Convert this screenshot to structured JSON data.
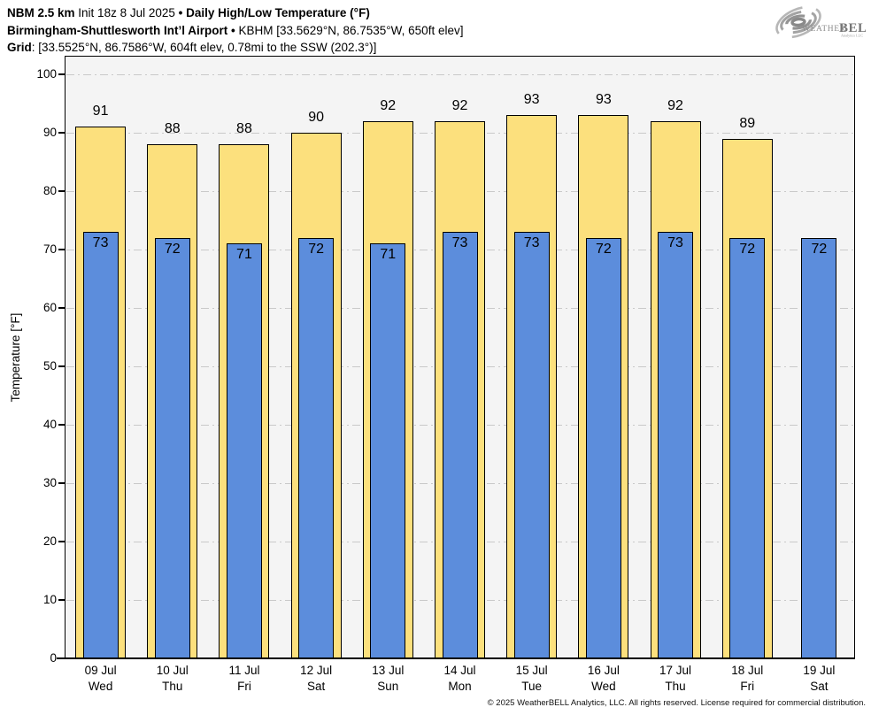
{
  "header": {
    "line1": {
      "model": "NBM 2.5 km",
      "init": "Init 18z 8 Jul 2025",
      "bullet": "•",
      "title": "Daily High/Low Temperature (°F)"
    },
    "line2": {
      "station": "Birmingham-Shuttlesworth Int’l Airport",
      "bullet": "•",
      "meta": "KBHM [33.5629°N, 86.7535°W, 650ft elev]"
    },
    "line3": {
      "label": "Grid",
      "meta": ": [33.5525°N, 86.7586°W, 604ft elev, 0.78mi to the SSW (202.3°)]"
    }
  },
  "logo": {
    "weather": "Weather",
    "bell": "BELL",
    "sub": "Analytics LLC"
  },
  "chart_data": {
    "type": "bar",
    "title": "Daily High/Low Temperature (°F)",
    "station": "Birmingham-Shuttlesworth Int’l Airport (KBHM)",
    "xlabel": "",
    "ylabel": "Temperature [°F]",
    "ylim": [
      0,
      100
    ],
    "yticks": [
      0,
      10,
      20,
      30,
      40,
      50,
      60,
      70,
      80,
      90,
      100
    ],
    "grid": "horizontal dash-dot",
    "legend_position": "none",
    "categories": [
      {
        "date": "09 Jul",
        "day": "Wed"
      },
      {
        "date": "10 Jul",
        "day": "Thu"
      },
      {
        "date": "11 Jul",
        "day": "Fri"
      },
      {
        "date": "12 Jul",
        "day": "Sat"
      },
      {
        "date": "13 Jul",
        "day": "Sun"
      },
      {
        "date": "14 Jul",
        "day": "Mon"
      },
      {
        "date": "15 Jul",
        "day": "Tue"
      },
      {
        "date": "16 Jul",
        "day": "Wed"
      },
      {
        "date": "17 Jul",
        "day": "Thu"
      },
      {
        "date": "18 Jul",
        "day": "Fri"
      },
      {
        "date": "19 Jul",
        "day": "Sat"
      }
    ],
    "series": [
      {
        "name": "Daily High",
        "color": "#FCE07D",
        "border": "#000000",
        "values": [
          91,
          88,
          88,
          90,
          92,
          92,
          93,
          93,
          92,
          89,
          null
        ]
      },
      {
        "name": "Daily Low",
        "color": "#5C8DDC",
        "border": "#000000",
        "values": [
          73,
          72,
          71,
          72,
          71,
          73,
          73,
          72,
          73,
          72,
          72
        ]
      }
    ]
  },
  "colors": {
    "high_bar": "#FCE07D",
    "low_bar": "#5C8DDC",
    "plot_bg": "#F4F4F4",
    "gridline": "#C9C9C9",
    "axis": "#000000"
  },
  "footer": {
    "copyright": "© 2025 WeatherBELL Analytics, LLC. All rights reserved. License required for commercial distribution."
  }
}
